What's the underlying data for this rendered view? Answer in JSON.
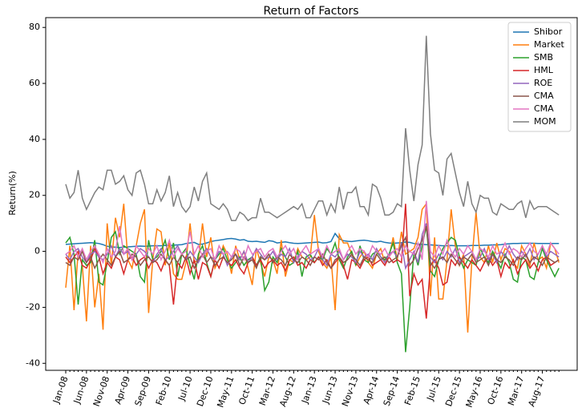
{
  "chart_data": {
    "type": "line",
    "title": "Return of Factors",
    "y_label": "Return(%)",
    "categories": [
      "Jan-08",
      null,
      null,
      null,
      null,
      "Jun-08",
      null,
      null,
      null,
      null,
      "Nov-08",
      null,
      null,
      null,
      null,
      "Apr-09",
      null,
      null,
      null,
      null,
      "Sep-09",
      null,
      null,
      null,
      null,
      "Feb-10",
      null,
      null,
      null,
      null,
      "Jul-10",
      null,
      null,
      null,
      null,
      "Dec-10",
      null,
      null,
      null,
      null,
      "May-11",
      null,
      null,
      null,
      null,
      "Oct-11",
      null,
      null,
      null,
      null,
      "Mar-12",
      null,
      null,
      null,
      null,
      "Aug-12",
      null,
      null,
      null,
      null,
      "Jan-13",
      null,
      null,
      null,
      null,
      "Jun-13",
      null,
      null,
      null,
      null,
      "Nov-13",
      null,
      null,
      null,
      null,
      "Apr-14",
      null,
      null,
      null,
      null,
      "Sep-14",
      null,
      null,
      null,
      null,
      "Feb-15",
      null,
      null,
      null,
      null,
      "Jul-15",
      null,
      null,
      null,
      null,
      "Dec-15",
      null,
      null,
      null,
      null,
      "May-16",
      null,
      null,
      null,
      null,
      "Oct-16",
      null,
      null,
      null,
      null,
      "Mar-17",
      null,
      null,
      null,
      null,
      "Aug-17",
      null,
      null,
      null,
      null
    ],
    "ylim": [
      -42.5,
      83.5
    ],
    "yticks": [
      -40,
      -20,
      0,
      20,
      40,
      60,
      80
    ],
    "legend": "upper right",
    "series": [
      {
        "name": "Shibor",
        "color": "#1f77b4",
        "values": [
          2.5,
          2.6,
          2.7,
          2.8,
          2.9,
          3.0,
          3.1,
          3.0,
          2.8,
          2.4,
          1.8,
          1.6,
          1.5,
          1.4,
          1.5,
          1.6,
          1.7,
          1.8,
          1.9,
          1.8,
          1.9,
          2.0,
          2.0,
          2.0,
          2.1,
          2.1,
          2.2,
          2.3,
          2.4,
          2.8,
          3.0,
          3.2,
          2.5,
          2.6,
          3.0,
          3.5,
          3.8,
          4.0,
          4.2,
          4.5,
          4.6,
          4.4,
          4.0,
          4.2,
          3.6,
          3.5,
          3.6,
          3.4,
          3.2,
          3.8,
          3.6,
          3.0,
          3.2,
          3.4,
          3.1,
          2.9,
          2.8,
          2.9,
          3.0,
          3.1,
          3.2,
          3.3,
          3.0,
          3.1,
          3.5,
          6.4,
          4.5,
          3.8,
          3.6,
          3.5,
          3.7,
          3.9,
          4.0,
          3.8,
          3.5,
          3.4,
          3.6,
          3.2,
          3.0,
          2.9,
          3.0,
          3.1,
          3.3,
          3.2,
          2.8,
          2.6,
          2.5,
          2.4,
          2.3,
          2.2,
          2.1,
          2.0,
          2.0,
          2.1,
          2.0,
          2.0,
          2.0,
          2.0,
          2.1,
          2.1,
          2.1,
          2.2,
          2.2,
          2.3,
          2.3,
          2.4,
          2.6,
          2.7,
          2.8,
          2.8,
          2.9,
          2.9,
          2.9,
          2.9,
          2.8,
          2.8,
          2.8,
          2.8,
          2.8,
          2.8
        ]
      },
      {
        "name": "Market",
        "color": "#ff7f0e",
        "values": [
          -13,
          2,
          -21,
          0,
          -5,
          -25,
          2,
          -20,
          -8,
          -28,
          10,
          -5,
          12,
          5,
          17,
          -3,
          -6,
          2,
          10,
          15,
          -22,
          -3,
          8,
          7,
          -5,
          3,
          -8,
          -10,
          -10,
          -4,
          10,
          -4,
          -3,
          10,
          -2,
          5,
          -6,
          -3,
          2,
          -1,
          -8,
          2,
          -3,
          0,
          -6,
          -12,
          1,
          -4,
          -9,
          -2,
          -3,
          -8,
          4,
          -9,
          -3,
          -4,
          1,
          -2,
          -3,
          -2,
          13,
          0,
          -4,
          -6,
          -2,
          -21,
          6,
          3,
          3,
          -1,
          -5,
          -2,
          0,
          -4,
          -6,
          -1,
          1,
          -4,
          -2,
          5,
          -3,
          7,
          -1,
          0,
          1,
          5,
          15,
          17,
          -16,
          5,
          -17,
          -17,
          -3,
          15,
          2,
          -5,
          -1,
          -29,
          -3,
          14,
          -2,
          -4,
          2,
          -4,
          3,
          -3,
          1,
          0,
          -4,
          -6,
          2,
          -1,
          -5,
          3,
          -3,
          -2,
          -6,
          3,
          1,
          -4
        ]
      },
      {
        "name": "SMB",
        "color": "#2ca02c",
        "values": [
          3,
          5,
          -1,
          -19,
          -3,
          -5,
          -4,
          4,
          -11,
          -12,
          -4,
          5,
          7,
          -1,
          2,
          1,
          0,
          -1,
          -9,
          -11,
          4,
          -3,
          -2,
          0,
          4,
          -3,
          3,
          -9,
          -1,
          1,
          -5,
          -10,
          -1,
          2,
          -4,
          -9,
          -3,
          -1,
          1,
          -3,
          -6,
          -4,
          -2,
          -5,
          -3,
          -2,
          -5,
          -2,
          -14,
          -11,
          -2,
          -4,
          1,
          -2,
          -5,
          -4,
          0,
          -9,
          -2,
          -1,
          -4,
          -2,
          -3,
          1,
          -1,
          3,
          -3,
          -6,
          -2,
          0,
          -5,
          2,
          -3,
          -4,
          -1,
          0,
          -2,
          -3,
          -1,
          3,
          -4,
          -8,
          -36,
          -20,
          0,
          -5,
          2,
          9,
          -7,
          -9,
          -3,
          1,
          3,
          5,
          4,
          -2,
          -6,
          -3,
          -4,
          -5,
          1,
          -2,
          -4,
          0,
          -3,
          -6,
          -1,
          -4,
          -10,
          -11,
          -2,
          -3,
          -9,
          -10,
          -4,
          1,
          -3,
          -6,
          -9,
          -6
        ]
      },
      {
        "name": "HML",
        "color": "#d62728",
        "values": [
          -2,
          -4,
          -2,
          0,
          -5,
          -6,
          -3,
          1,
          -2,
          -8,
          -4,
          -6,
          -2,
          -3,
          -8,
          -3,
          -2,
          -5,
          -3,
          -2,
          -6,
          -3,
          -4,
          -7,
          -3,
          -5,
          -19,
          -4,
          -6,
          -2,
          -8,
          -3,
          -10,
          -4,
          -5,
          -9,
          -3,
          -6,
          -2,
          -4,
          -5,
          -3,
          -6,
          -8,
          -4,
          -2,
          -5,
          -3,
          -6,
          -4,
          -3,
          -5,
          -4,
          -7,
          -3,
          -2,
          -5,
          -4,
          -6,
          -3,
          -4,
          -2,
          -5,
          -3,
          -6,
          -4,
          -2,
          -5,
          -10,
          -3,
          -4,
          -6,
          -3,
          -2,
          -5,
          -4,
          -3,
          -5,
          -2,
          -4,
          -3,
          -4,
          17,
          -16,
          -8,
          -12,
          -10,
          -24,
          -5,
          -3,
          -6,
          -12,
          -11,
          -3,
          -5,
          -2,
          -4,
          -6,
          -3,
          -5,
          -7,
          -4,
          -2,
          -5,
          -3,
          -9,
          -4,
          -6,
          -3,
          -8,
          -5,
          -3,
          -6,
          -4,
          -7,
          -3,
          -2,
          -5,
          -4,
          -3
        ]
      },
      {
        "name": "ROE",
        "color": "#9467bd",
        "values": [
          -1,
          -3,
          0,
          1,
          -2,
          -4,
          -1,
          0,
          -2,
          -3,
          -1,
          2,
          -2,
          1,
          -1,
          0,
          -3,
          -1,
          1,
          0,
          -2,
          -4,
          -1,
          1,
          -3,
          -2,
          0,
          2,
          -1,
          -3,
          0,
          -2,
          -4,
          -1,
          1,
          -2,
          -3,
          0,
          -1,
          -5,
          -2,
          -1,
          -3,
          0,
          -4,
          -2,
          1,
          -1,
          -3,
          -2,
          0,
          -3,
          -1,
          -2,
          1,
          -4,
          -2,
          0,
          -1,
          -3,
          -2,
          1,
          -3,
          -5,
          -1,
          -2,
          0,
          -3,
          -1,
          -2,
          -4,
          0,
          -2,
          -1,
          -3,
          1,
          -2,
          -4,
          -1,
          0,
          -2,
          3,
          -6,
          -3,
          0,
          -4,
          6,
          10,
          -2,
          -4,
          -1,
          -3,
          0,
          -2,
          1,
          -4,
          -2,
          -1,
          0,
          -3,
          -2,
          1,
          -3,
          -1,
          -4,
          0,
          -2,
          2,
          -1,
          -3,
          0,
          -2,
          1,
          -3,
          -1,
          2,
          -2,
          0,
          -1,
          -2
        ]
      },
      {
        "name": "CMA",
        "color": "#8c564b",
        "values": [
          -4,
          -5,
          -2,
          -3,
          0,
          -4,
          -2,
          -6,
          -3,
          -1,
          -3,
          -5,
          -2,
          0,
          -4,
          -3,
          -1,
          -2,
          -5,
          -3,
          -2,
          -4,
          -3,
          -1,
          -3,
          -5,
          -2,
          -4,
          -1,
          -3,
          -2,
          -6,
          -3,
          -1,
          -4,
          -2,
          -5,
          -3,
          -2,
          -4,
          -3,
          -1,
          -5,
          -2,
          -4,
          -3,
          -6,
          -2,
          -3,
          -1,
          -4,
          -2,
          -3,
          -5,
          -1,
          -3,
          -4,
          -2,
          -3,
          -5,
          -2,
          -3,
          -1,
          -4,
          -6,
          -3,
          -2,
          -4,
          -3,
          -1,
          -3,
          -5,
          -2,
          -3,
          -4,
          -1,
          -3,
          -2,
          -4,
          -3,
          -2,
          2,
          5,
          -5,
          -3,
          1,
          4,
          9,
          -4,
          -6,
          -3,
          -2,
          -4,
          -1,
          -3,
          -5,
          -2,
          -3,
          -1,
          -4,
          -3,
          -2,
          -5,
          -1,
          -3,
          -4,
          -2,
          -3,
          -5,
          -2,
          -3,
          -1,
          -4,
          -2,
          -3,
          -5,
          -2,
          -3,
          -4,
          -3
        ]
      },
      {
        "name": "CMA",
        "color": "#e377c2",
        "values": [
          -1,
          0,
          2,
          -2,
          1,
          -3,
          0,
          2,
          -1,
          -4,
          1,
          -2,
          0,
          9,
          -1,
          1,
          -3,
          2,
          0,
          -2,
          1,
          -1,
          2,
          -3,
          0,
          4,
          -2,
          1,
          -1,
          0,
          7,
          -1,
          2,
          -2,
          0,
          1,
          -3,
          2,
          -1,
          0,
          -2,
          1,
          0,
          -3,
          2,
          -1,
          0,
          1,
          -2,
          0,
          1,
          -2,
          0,
          2,
          -1,
          1,
          -3,
          0,
          2,
          -1,
          0,
          1,
          -2,
          2,
          -1,
          0,
          1,
          -3,
          0,
          2,
          -1,
          1,
          0,
          -2,
          2,
          0,
          -1,
          1,
          -2,
          0,
          1,
          -2,
          2,
          0,
          -1,
          3,
          -3,
          18,
          0,
          -2,
          2,
          -1,
          4,
          0,
          -2,
          1,
          -1,
          2,
          0,
          -3,
          1,
          0,
          -2,
          2,
          -1,
          0,
          3,
          -1,
          1,
          0,
          -2,
          1,
          3,
          0,
          -1,
          2,
          -1,
          3,
          1,
          -1
        ]
      },
      {
        "name": "MOM",
        "color": "#7f7f7f",
        "values": [
          24,
          19,
          21,
          29,
          19,
          15,
          18,
          21,
          23,
          22,
          29,
          29,
          24,
          25,
          27,
          22,
          20,
          28,
          29,
          24,
          17,
          17,
          22,
          18,
          21,
          27,
          16,
          21,
          16,
          14,
          16,
          23,
          18,
          25,
          28,
          17,
          16,
          15,
          17,
          15,
          11,
          11,
          14,
          13,
          11,
          12,
          12,
          19,
          14,
          14,
          13,
          12,
          13,
          14,
          15,
          16,
          15,
          17,
          12,
          12,
          15,
          18,
          18,
          13,
          17,
          14,
          23,
          15,
          21,
          21,
          23,
          16,
          16,
          13,
          24,
          23,
          19,
          13,
          13,
          14,
          17,
          16,
          44,
          29,
          18,
          31,
          38,
          77,
          42,
          29,
          28,
          20,
          33,
          35,
          28,
          21,
          16,
          25,
          17,
          14,
          20,
          19,
          19,
          14,
          13,
          17,
          16,
          15,
          15,
          17,
          18,
          12,
          18,
          15,
          16,
          16,
          16,
          15,
          14,
          13
        ]
      }
    ]
  }
}
